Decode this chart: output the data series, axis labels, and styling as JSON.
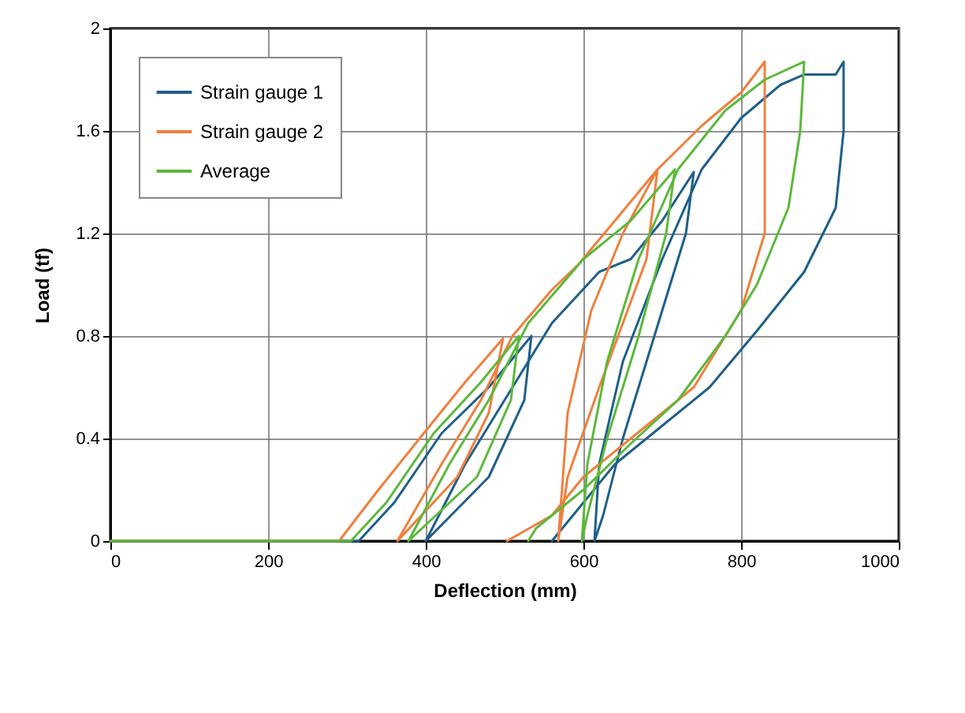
{
  "chart_data": {
    "type": "line",
    "xlabel": "Deflection (mm)",
    "ylabel": "Load (tf)",
    "xlim": [
      0,
      1000
    ],
    "xticks": [
      0,
      200,
      400,
      600,
      800,
      1000
    ],
    "ylim": [
      0,
      2
    ],
    "yticks": [
      0,
      0.4,
      0.8,
      1.2,
      1.6,
      2
    ],
    "grid": true,
    "legend": "top left",
    "marker": "none",
    "line_style": "solid",
    "series": [
      {
        "name": "Strain gauge 1",
        "color": "#1f5f8b",
        "x": [
          0,
          315,
          360,
          420,
          480,
          534,
          525,
          480,
          400,
          450,
          500,
          560,
          620,
          660,
          700,
          740,
          730,
          690,
          650,
          625,
          614,
          620,
          650,
          700,
          750,
          800,
          850,
          880,
          920,
          930,
          930,
          920,
          880,
          820,
          760,
          700,
          640,
          600,
          560
        ],
        "values": [
          0,
          0,
          0.15,
          0.42,
          0.6,
          0.8,
          0.55,
          0.25,
          0,
          0.3,
          0.55,
          0.85,
          1.05,
          1.1,
          1.25,
          1.44,
          1.2,
          0.8,
          0.4,
          0.1,
          0,
          0.3,
          0.7,
          1.1,
          1.45,
          1.65,
          1.78,
          1.82,
          1.82,
          1.87,
          1.6,
          1.3,
          1.05,
          0.82,
          0.6,
          0.45,
          0.3,
          0.15,
          0
        ]
      },
      {
        "name": "Strain gauge 2",
        "color": "#f07f3c",
        "x": [
          0,
          290,
          340,
          400,
          450,
          498,
          480,
          440,
          364,
          420,
          470,
          510,
          560,
          594,
          640,
          694,
          680,
          620,
          580,
          568,
          580,
          610,
          650,
          694,
          750,
          800,
          830,
          830,
          800,
          740,
          680,
          600,
          560,
          503
        ],
        "values": [
          0,
          0,
          0.2,
          0.43,
          0.62,
          0.79,
          0.5,
          0.25,
          0,
          0.3,
          0.55,
          0.8,
          0.98,
          1.08,
          1.25,
          1.45,
          1.1,
          0.6,
          0.25,
          0,
          0.5,
          0.9,
          1.2,
          1.45,
          1.62,
          1.75,
          1.87,
          1.2,
          0.9,
          0.6,
          0.45,
          0.25,
          0.1,
          0
        ]
      },
      {
        "name": "Average",
        "color": "#5cb83c",
        "x": [
          0,
          305,
          350,
          410,
          470,
          518,
          508,
          465,
          378,
          430,
          480,
          530,
          600,
          660,
          716,
          705,
          670,
          630,
          605,
          598,
          605,
          630,
          670,
          720,
          780,
          830,
          880,
          875,
          860,
          820,
          780,
          720,
          660,
          600,
          540,
          530
        ],
        "values": [
          0,
          0,
          0.15,
          0.42,
          0.62,
          0.8,
          0.55,
          0.25,
          0,
          0.3,
          0.55,
          0.85,
          1.1,
          1.25,
          1.45,
          1.2,
          0.8,
          0.4,
          0.1,
          0,
          0.3,
          0.7,
          1.1,
          1.45,
          1.68,
          1.8,
          1.87,
          1.6,
          1.3,
          1.0,
          0.8,
          0.55,
          0.38,
          0.2,
          0.05,
          0
        ]
      }
    ]
  }
}
